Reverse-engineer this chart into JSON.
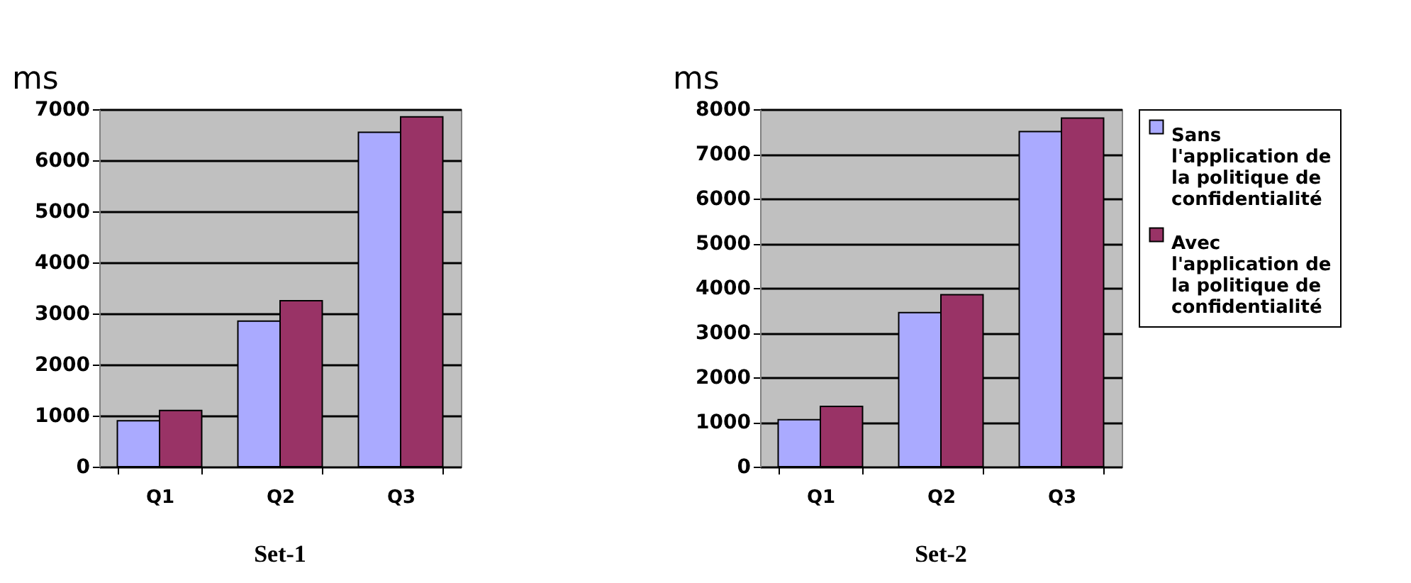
{
  "chart_data": [
    {
      "type": "bar",
      "title": "Set-1",
      "ylabel": "ms",
      "categories": [
        "Q1",
        "Q2",
        "Q3"
      ],
      "series": [
        {
          "color": "#aaaaff",
          "values": [
            900,
            2850,
            6550
          ]
        },
        {
          "color": "#993366",
          "values": [
            1100,
            3250,
            6850
          ]
        }
      ],
      "ylim": [
        0,
        7000
      ],
      "yticks": [
        0,
        1000,
        2000,
        3000,
        4000,
        5000,
        6000,
        7000
      ],
      "grid": "y",
      "legend": false
    },
    {
      "type": "bar",
      "title": "Set-2",
      "ylabel": "ms",
      "categories": [
        "Q1",
        "Q2",
        "Q3"
      ],
      "series": [
        {
          "name": "Sans l'application de la politique de confidentialité",
          "color": "#aaaaff",
          "values": [
            1050,
            3450,
            7500
          ]
        },
        {
          "name": "Avec l'application de la politique de confidentialité",
          "color": "#993366",
          "values": [
            1350,
            3850,
            7800
          ]
        }
      ],
      "ylim": [
        0,
        8000
      ],
      "yticks": [
        0,
        1000,
        2000,
        3000,
        4000,
        5000,
        6000,
        7000,
        8000
      ],
      "grid": "y",
      "legend": "right"
    }
  ]
}
